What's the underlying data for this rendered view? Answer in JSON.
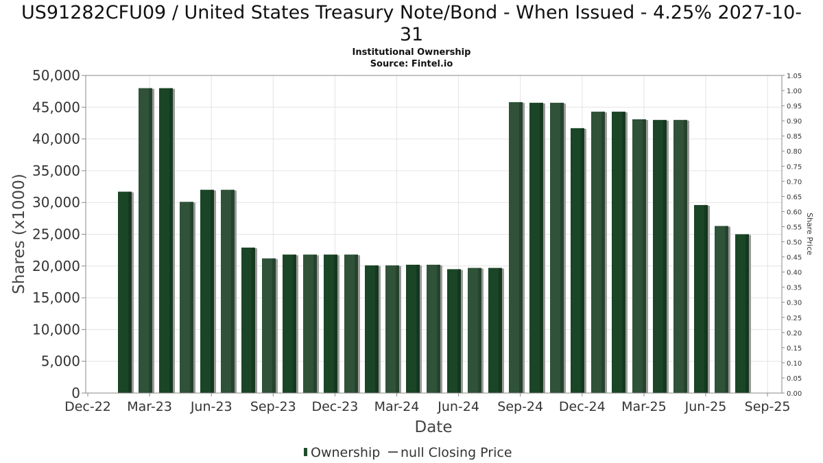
{
  "chart_data": {
    "type": "bar",
    "title": "US91282CFU09 / United States Treasury Note/Bond - When Issued - 4.25% 2027-10-31",
    "title_lines": [
      "US91282CFU09 / United States Treasury Note/Bond - When Issued - 4.25% 2027-10-",
      "31"
    ],
    "subtitle": "Institutional Ownership",
    "source": "Source: Fintel.io",
    "xlabel": "Date",
    "ylabel": "Shares (x1000)",
    "ylabel_right": "Share Price",
    "ylim": [
      0,
      50000
    ],
    "ylim_right": [
      0,
      1.05
    ],
    "yticks": [
      0,
      5000,
      10000,
      15000,
      20000,
      25000,
      30000,
      35000,
      40000,
      45000,
      50000
    ],
    "yticks_labels": [
      "0",
      "5,000",
      "10,000",
      "15,000",
      "20,000",
      "25,000",
      "30,000",
      "35,000",
      "40,000",
      "45,000",
      "50,000"
    ],
    "yticks_right_labels": [
      "0.00",
      "0.05",
      "0.10",
      "0.15",
      "0.20",
      "0.25",
      "0.30",
      "0.35",
      "0.40",
      "0.45",
      "0.50",
      "0.55",
      "0.60",
      "0.65",
      "0.70",
      "0.75",
      "0.80",
      "0.85",
      "0.90",
      "0.95",
      "1.00",
      "1.05"
    ],
    "x_ticks": [
      "Dec-22",
      "Mar-23",
      "Jun-23",
      "Sep-23",
      "Dec-23",
      "Mar-24",
      "Jun-24",
      "Sep-24",
      "Dec-24",
      "Mar-25",
      "Jun-25",
      "Sep-25"
    ],
    "grid": true,
    "legend_position": "bottom-center",
    "series": [
      {
        "name": "Ownership",
        "color": "#1e4d2b",
        "values": [
          31700,
          48000,
          48000,
          30100,
          32000,
          32000,
          22900,
          21200,
          21800,
          21800,
          21800,
          21800,
          20100,
          20100,
          20200,
          20200,
          19500,
          19700,
          19700,
          45800,
          45700,
          45700,
          41700,
          44300,
          44300,
          43100,
          43000,
          43000,
          29600,
          26300,
          25000
        ]
      },
      {
        "name": "null Closing Price",
        "color": "#555555",
        "values": []
      }
    ]
  }
}
